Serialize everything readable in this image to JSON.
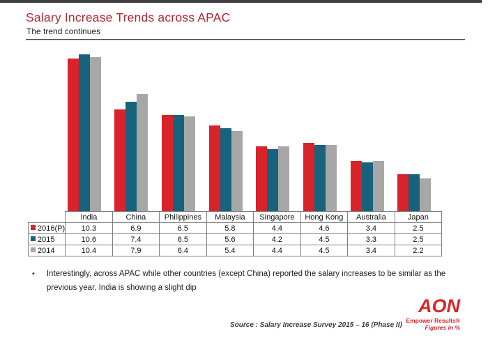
{
  "slide": {
    "title": "Salary Increase Trends across APAC",
    "subtitle": "The trend continues",
    "bullet": "Interestingly, across APAC while other countries (except China) reported the salary increases to be similar as the previous year, India is showing a slight dip",
    "source": "Source : Salary Increase Survey 2015 – 16 (Phase II)",
    "footer_note": "Figures in %"
  },
  "logo": {
    "text": "AON",
    "tagline": "Empower Results®"
  },
  "colors": {
    "title_red": "#b2292e",
    "logo_red": "#d9252c",
    "series_2016": "#d8232a",
    "series_2015": "#17637e",
    "series_2014": "#a7a7a7",
    "table_border": "#7f7f7f"
  },
  "chart_data": {
    "type": "bar",
    "title": "Salary Increase Trends across APAC",
    "value_unit": "%",
    "grid": false,
    "ylim": [
      0,
      11
    ],
    "legend_position": "table-left-column",
    "categories": [
      "India",
      "China",
      "Philippines",
      "Malaysia",
      "Singapore",
      "Hong Kong",
      "Australia",
      "Japan"
    ],
    "series": [
      {
        "name": "2016(P)",
        "color": "#d8232a",
        "values": [
          10.3,
          6.9,
          6.5,
          5.8,
          4.4,
          4.6,
          3.4,
          2.5
        ]
      },
      {
        "name": "2015",
        "color": "#17637e",
        "values": [
          10.6,
          7.4,
          6.5,
          5.6,
          4.2,
          4.5,
          3.3,
          2.5
        ]
      },
      {
        "name": "2014",
        "color": "#a7a7a7",
        "values": [
          10.4,
          7.9,
          6.4,
          5.4,
          4.4,
          4.5,
          3.4,
          2.2
        ]
      }
    ]
  }
}
